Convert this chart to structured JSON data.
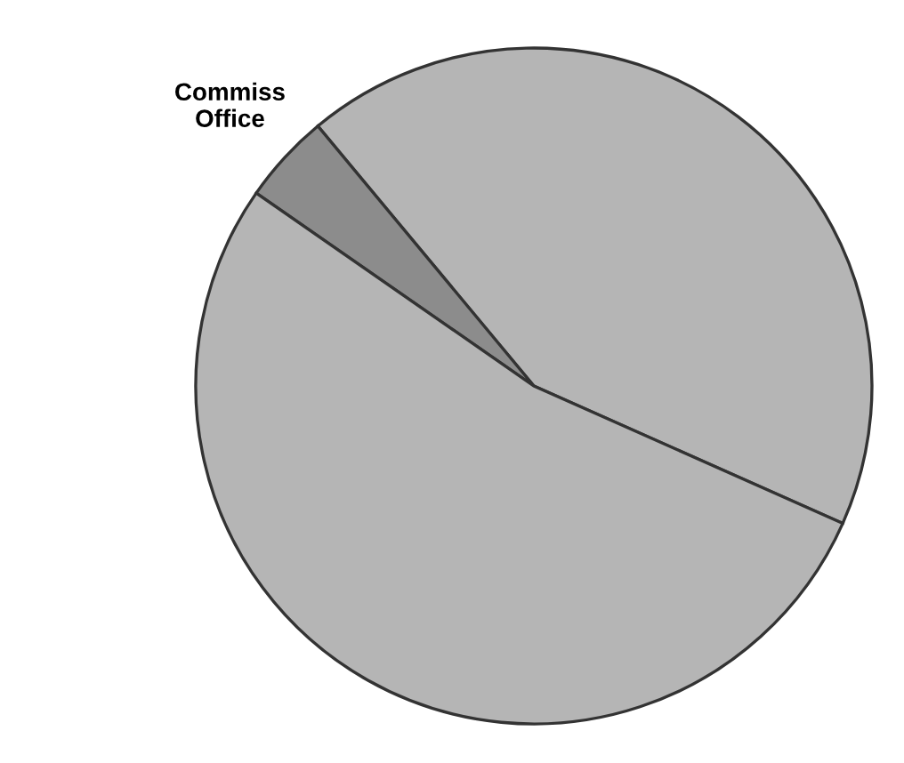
{
  "chart_data": {
    "type": "pie",
    "categories": [
      null,
      "Commiss\nOffice",
      null
    ],
    "values": [
      42.7,
      4.3,
      53.0
    ],
    "colors": [
      "#b5b5b5",
      "#8c8c8c",
      "#b5b5b5"
    ]
  }
}
